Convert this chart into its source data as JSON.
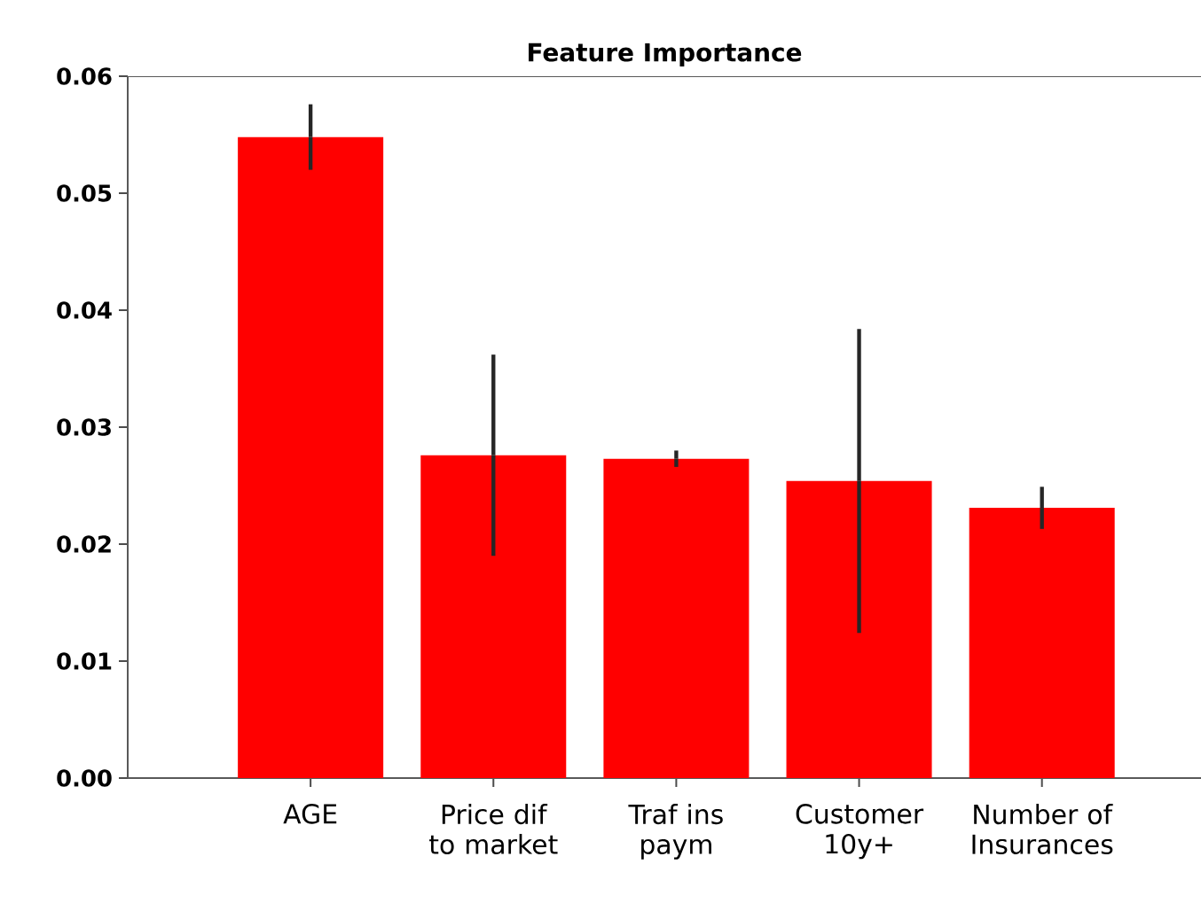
{
  "chart_data": {
    "type": "bar",
    "title": "Feature Importance",
    "categories": [
      "AGE",
      "Price dif to market",
      "Traf ins paym",
      "Customer 10y+",
      "Number of Insurances"
    ],
    "values": [
      0.0548,
      0.0276,
      0.0273,
      0.0254,
      0.0231
    ],
    "errors": [
      0.0028,
      0.0086,
      0.0007,
      0.013,
      0.0018
    ],
    "color": "#ff0000",
    "ylim": [
      0,
      0.06
    ],
    "yticks": [
      {
        "value": 0,
        "label": "0.00"
      },
      0.01,
      0.02,
      0.03,
      0.04,
      0.05,
      0.06
    ]
  }
}
